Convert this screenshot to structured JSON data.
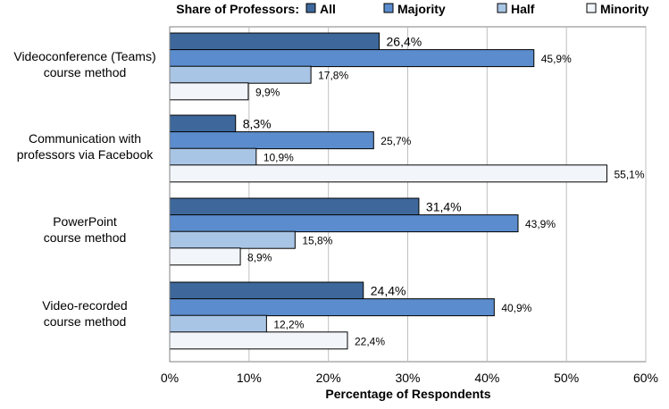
{
  "chart_data": {
    "type": "bar",
    "orientation": "horizontal",
    "categories": [
      [
        "Videoconference (Teams)",
        "course method"
      ],
      [
        "Communication with",
        "professors via Facebook"
      ],
      [
        "PowerPoint",
        "course method"
      ],
      [
        "Video-recorded",
        "course method"
      ]
    ],
    "series": [
      {
        "name": "All",
        "values": [
          26.4,
          8.3,
          31.4,
          24.4
        ],
        "labels": [
          "26,4%",
          "8,3%",
          "31,4%",
          "24,4%"
        ],
        "color": "#3e689b"
      },
      {
        "name": "Majority",
        "values": [
          45.9,
          25.7,
          43.9,
          40.9
        ],
        "labels": [
          "45,9%",
          "25,7%",
          "43,9%",
          "40,9%"
        ],
        "color": "#5b8ccd"
      },
      {
        "name": "Half",
        "values": [
          17.8,
          10.9,
          15.8,
          12.2
        ],
        "labels": [
          "17,8%",
          "10,9%",
          "15,8%",
          "12,2%"
        ],
        "color": "#a9c5e5"
      },
      {
        "name": "Minority",
        "values": [
          9.9,
          55.1,
          8.9,
          22.4
        ],
        "labels": [
          "9,9%",
          "55,1%",
          "8,9%",
          "22,4%"
        ],
        "color": "#f2f6fb"
      }
    ],
    "legend_title": "Share of Professors:",
    "legend_position": "top",
    "xlabel": "Percentage of Respondents",
    "ylabel": "",
    "xlim": [
      0,
      60
    ],
    "x_ticks": [
      0,
      10,
      20,
      30,
      40,
      50,
      60
    ],
    "x_tick_labels": [
      "0%",
      "10%",
      "20%",
      "30%",
      "40%",
      "50%",
      "60%"
    ],
    "grid": true,
    "bar_outline_color": "#000000",
    "gridline_color": "#bfbfbf"
  }
}
